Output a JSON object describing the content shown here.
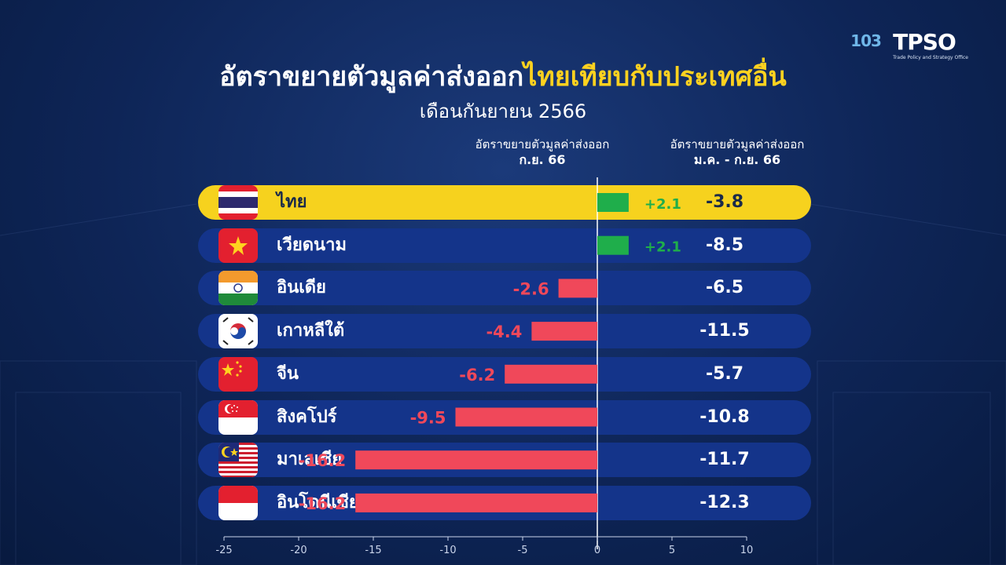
{
  "title": {
    "part1": "อัตราขยายตัวมูลค่าส่งออก",
    "part2": "ไทยเทียบกับประเทศอื่น"
  },
  "subtitle": "เดือนกันยายน 2566",
  "columns": {
    "monthly": {
      "line1": "อัตราขยายตัวมูลค่าส่งออก",
      "line2": "ก.ย. 66"
    },
    "ytd": {
      "line1": "อัตราขยายตัวมูลค่าส่งออก",
      "line2": "ม.ค. - ก.ย. 66"
    }
  },
  "logos": {
    "anniv": "103",
    "tps": "TPSO",
    "tps_tagline": "Trade Policy and Strategy Office"
  },
  "colors": {
    "positive": "#1fae4b",
    "negative": "#f0485a",
    "highlight": "#f6d21e",
    "row": "#14348a"
  },
  "chart_data": {
    "type": "bar",
    "orientation": "horizontal",
    "categories": [
      "ไทย",
      "เวียดนาม",
      "อินเดีย",
      "เกาหลีใต้",
      "จีน",
      "สิงคโปร์",
      "มาเลเซีย",
      "อินโดนีเซีย"
    ],
    "series": [
      {
        "values": [
          2.1,
          2.1,
          -2.6,
          -4.4,
          -6.2,
          -9.5,
          -16.2,
          -16.2
        ]
      }
    ],
    "labels": [
      "+2.1",
      "+2.1",
      "-2.6",
      "-4.4",
      "-6.2",
      "-9.5",
      "-16.2",
      "-16.2"
    ],
    "ytd_values": [
      "-3.8",
      "-8.5",
      "-6.5",
      "-11.5",
      "-5.7",
      "-10.8",
      "-11.7",
      "-12.3"
    ],
    "highlight_index": 0,
    "xlim": [
      -25,
      10
    ],
    "xticks": [
      -25,
      -20,
      -15,
      -10,
      -5,
      0,
      5,
      10
    ],
    "flags": [
      "thailand-flag",
      "vietnam-flag",
      "india-flag",
      "south-korea-flag",
      "china-flag",
      "singapore-flag",
      "malaysia-flag",
      "indonesia-flag"
    ]
  }
}
